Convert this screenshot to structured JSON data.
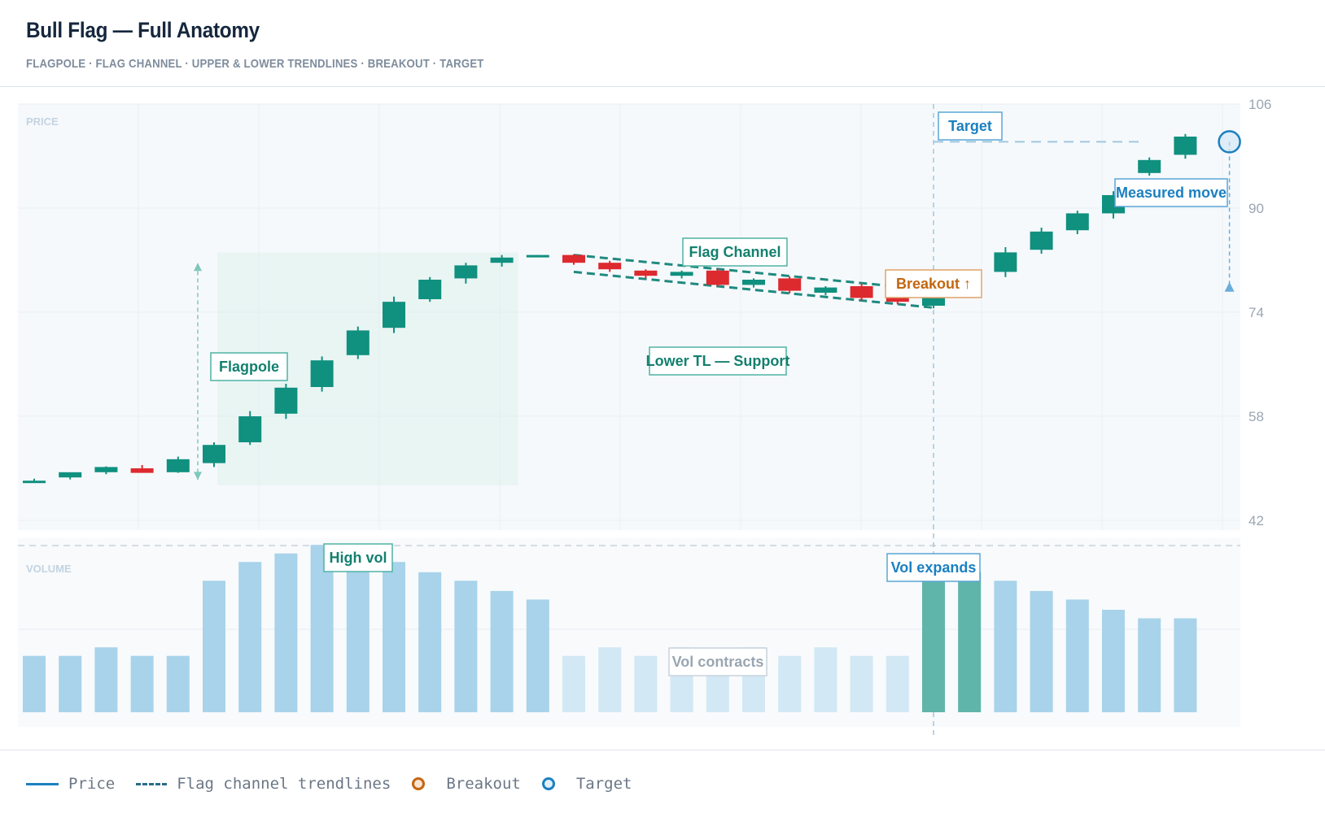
{
  "header": {
    "title": "Bull Flag — Full Anatomy",
    "subtitle": "FLAGPOLE · FLAG CHANNEL · UPPER & LOWER TRENDLINES · BREAKOUT · TARGET"
  },
  "colors": {
    "up": "#10907f",
    "down": "#dd2a2f",
    "volume_normal": "#a8d3ea",
    "volume_light": "#d2e8f4",
    "volume_breakout": "#5fb5aa",
    "trendline": "#1e8a7e",
    "breakout": "#c4660f",
    "target": "#1b80c0"
  },
  "chart_data": {
    "type": "candlestick",
    "price_panel": {
      "label": "PRICE",
      "ylim": [
        42,
        106
      ],
      "yticks": [
        "106",
        "90",
        "74",
        "58",
        "42"
      ],
      "grid": true
    },
    "volume_panel": {
      "label": "VOLUME",
      "ylim": [
        0,
        100
      ]
    },
    "candles": [
      {
        "o": 48.1,
        "h": 48.4,
        "l": 47.8,
        "c": 48.1
      },
      {
        "o": 48.6,
        "h": 49.2,
        "l": 48.3,
        "c": 49.4
      },
      {
        "o": 49.4,
        "h": 50.3,
        "l": 49.1,
        "c": 50.2
      },
      {
        "o": 50.0,
        "h": 50.5,
        "l": 49.3,
        "c": 49.3
      },
      {
        "o": 49.4,
        "h": 51.8,
        "l": 49.3,
        "c": 51.4
      },
      {
        "o": 50.8,
        "h": 54.0,
        "l": 50.2,
        "c": 53.6
      },
      {
        "o": 54.0,
        "h": 58.8,
        "l": 53.6,
        "c": 58.0
      },
      {
        "o": 58.4,
        "h": 63.0,
        "l": 57.6,
        "c": 62.4
      },
      {
        "o": 62.5,
        "h": 67.2,
        "l": 61.8,
        "c": 66.6
      },
      {
        "o": 67.4,
        "h": 71.8,
        "l": 66.8,
        "c": 71.2
      },
      {
        "o": 71.6,
        "h": 76.4,
        "l": 70.8,
        "c": 75.6
      },
      {
        "o": 76.0,
        "h": 79.4,
        "l": 75.6,
        "c": 79.0
      },
      {
        "o": 79.2,
        "h": 81.6,
        "l": 78.4,
        "c": 81.2
      },
      {
        "o": 81.6,
        "h": 82.8,
        "l": 81.0,
        "c": 82.4
      },
      {
        "o": 82.6,
        "h": 82.8,
        "l": 82.6,
        "c": 82.8
      },
      {
        "o": 82.8,
        "h": 82.9,
        "l": 81.3,
        "c": 81.6
      },
      {
        "o": 81.6,
        "h": 81.9,
        "l": 80.2,
        "c": 80.6
      },
      {
        "o": 80.4,
        "h": 80.6,
        "l": 79.2,
        "c": 79.6
      },
      {
        "o": 79.6,
        "h": 80.4,
        "l": 79.2,
        "c": 80.2
      },
      {
        "o": 80.4,
        "h": 80.7,
        "l": 77.9,
        "c": 78.2
      },
      {
        "o": 78.2,
        "h": 79.2,
        "l": 77.8,
        "c": 79.0
      },
      {
        "o": 79.2,
        "h": 79.5,
        "l": 76.9,
        "c": 77.3
      },
      {
        "o": 77.0,
        "h": 78.0,
        "l": 76.6,
        "c": 77.8
      },
      {
        "o": 78.0,
        "h": 78.4,
        "l": 75.8,
        "c": 76.2
      },
      {
        "o": 76.4,
        "h": 76.6,
        "l": 75.2,
        "c": 75.6
      },
      {
        "o": 75.0,
        "h": 77.8,
        "l": 74.6,
        "c": 77.4
      },
      {
        "o": 77.4,
        "h": 79.4,
        "l": 77.0,
        "c": 78.6
      },
      {
        "o": 80.2,
        "h": 84.0,
        "l": 79.4,
        "c": 83.2
      },
      {
        "o": 83.6,
        "h": 87.0,
        "l": 83.0,
        "c": 86.4
      },
      {
        "o": 86.6,
        "h": 89.6,
        "l": 86.0,
        "c": 89.2
      },
      {
        "o": 89.2,
        "h": 92.6,
        "l": 88.4,
        "c": 92.0
      },
      {
        "o": 95.4,
        "h": 97.8,
        "l": 95.0,
        "c": 97.4
      },
      {
        "o": 98.2,
        "h": 101.4,
        "l": 97.6,
        "c": 101.0
      }
    ],
    "volume": [
      33,
      33,
      38,
      33,
      33,
      77,
      88,
      93,
      98,
      93,
      88,
      82,
      77,
      71,
      66,
      33,
      38,
      33,
      38,
      33,
      38,
      33,
      38,
      33,
      33,
      88,
      82,
      77,
      71,
      66,
      60,
      55,
      55
    ],
    "trendlines": {
      "upper": {
        "from": [
          15,
          82.8
        ],
        "to": [
          25,
          77.4
        ]
      },
      "lower": {
        "from": [
          15,
          80.2
        ],
        "to": [
          25,
          74.7
        ]
      }
    },
    "flagpole": {
      "from_index": 5,
      "to_index": 13,
      "base": 48.2,
      "top": 81.6
    },
    "breakout": {
      "index": 25,
      "price": 77.4
    },
    "target": {
      "price": 100.2,
      "index": 33
    },
    "annotations": {
      "flagpole": "Flagpole",
      "flag_channel": "Flag Channel",
      "lower_tl": "Lower TL — Support",
      "breakout": "Breakout ↑",
      "target": "Target",
      "measured_move": "Measured move",
      "high_vol": "High vol",
      "vol_contracts": "Vol contracts",
      "vol_expands": "Vol expands"
    }
  },
  "legend": {
    "price": "Price",
    "trendlines": "Flag channel trendlines",
    "breakout": "Breakout",
    "target": "Target"
  }
}
